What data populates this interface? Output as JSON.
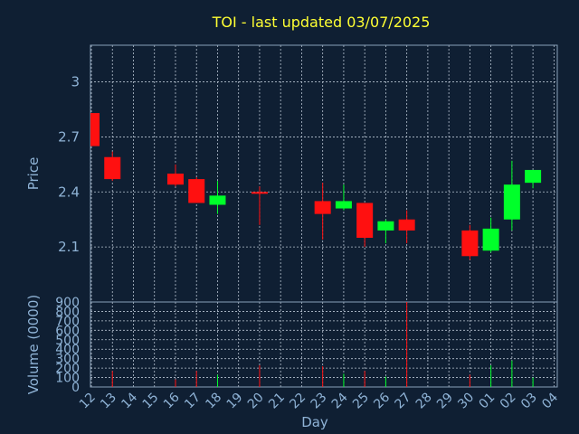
{
  "chart_data": {
    "type": "candlestick",
    "title": "TOI - last updated 03/07/2025",
    "xlabel": "Day",
    "price_panel": {
      "ylabel": "Price",
      "ylim": [
        1.8,
        3.2
      ],
      "yticks": [
        "3",
        "2.7",
        "2.4",
        "2.1"
      ],
      "ytick_values": [
        3.0,
        2.7,
        2.4,
        2.1
      ]
    },
    "volume_panel": {
      "ylabel": "Volume (0000)",
      "ylim": [
        0,
        900
      ],
      "yticks": [
        "900",
        "800",
        "700",
        "600",
        "500",
        "400",
        "300",
        "200",
        "100",
        "0"
      ],
      "ytick_values": [
        900,
        800,
        700,
        600,
        500,
        400,
        300,
        200,
        100,
        0
      ]
    },
    "x_ticks": [
      "12",
      "13",
      "14",
      "15",
      "16",
      "17",
      "18",
      "19",
      "20",
      "21",
      "22",
      "23",
      "24",
      "25",
      "26",
      "27",
      "28",
      "29",
      "30",
      "01",
      "02",
      "03",
      "04"
    ],
    "candles": [
      {
        "day": "12",
        "open": 2.83,
        "close": 2.65,
        "high": 2.83,
        "low": 2.65,
        "volume": 0
      },
      {
        "day": "13",
        "open": 2.59,
        "close": 2.47,
        "high": 2.62,
        "low": 2.46,
        "volume": 170
      },
      {
        "day": "16",
        "open": 2.5,
        "close": 2.44,
        "high": 2.55,
        "low": 2.43,
        "volume": 80
      },
      {
        "day": "17",
        "open": 2.47,
        "close": 2.34,
        "high": 2.48,
        "low": 2.34,
        "volume": 170
      },
      {
        "day": "18",
        "open": 2.33,
        "close": 2.38,
        "high": 2.46,
        "low": 2.28,
        "volume": 130
      },
      {
        "day": "20",
        "open": 2.4,
        "close": 2.39,
        "high": 2.43,
        "low": 2.22,
        "volume": 230
      },
      {
        "day": "23",
        "open": 2.35,
        "close": 2.28,
        "high": 2.45,
        "low": 2.14,
        "volume": 220
      },
      {
        "day": "24",
        "open": 2.31,
        "close": 2.35,
        "high": 2.44,
        "low": 2.3,
        "volume": 140
      },
      {
        "day": "25",
        "open": 2.34,
        "close": 2.15,
        "high": 2.34,
        "low": 2.1,
        "volume": 170
      },
      {
        "day": "26",
        "open": 2.19,
        "close": 2.24,
        "high": 2.25,
        "low": 2.12,
        "volume": 110
      },
      {
        "day": "27",
        "open": 2.25,
        "close": 2.19,
        "high": 2.3,
        "low": 2.12,
        "volume": 900
      },
      {
        "day": "30",
        "open": 2.19,
        "close": 2.05,
        "high": 2.22,
        "low": 2.03,
        "volume": 130
      },
      {
        "day": "01",
        "open": 2.08,
        "close": 2.2,
        "high": 2.26,
        "low": 2.07,
        "volume": 230
      },
      {
        "day": "02",
        "open": 2.25,
        "close": 2.44,
        "high": 2.57,
        "low": 2.19,
        "volume": 280
      },
      {
        "day": "03",
        "open": 2.45,
        "close": 2.52,
        "high": 2.52,
        "low": 2.42,
        "volume": 100
      }
    ],
    "grid": true,
    "colors": {
      "up": "#00ff2a",
      "down": "#ff1010",
      "background": "#0f1f33",
      "title": "#ffff33",
      "axis_text": "#8fb3d6",
      "grid": "#b8c4d2"
    }
  }
}
